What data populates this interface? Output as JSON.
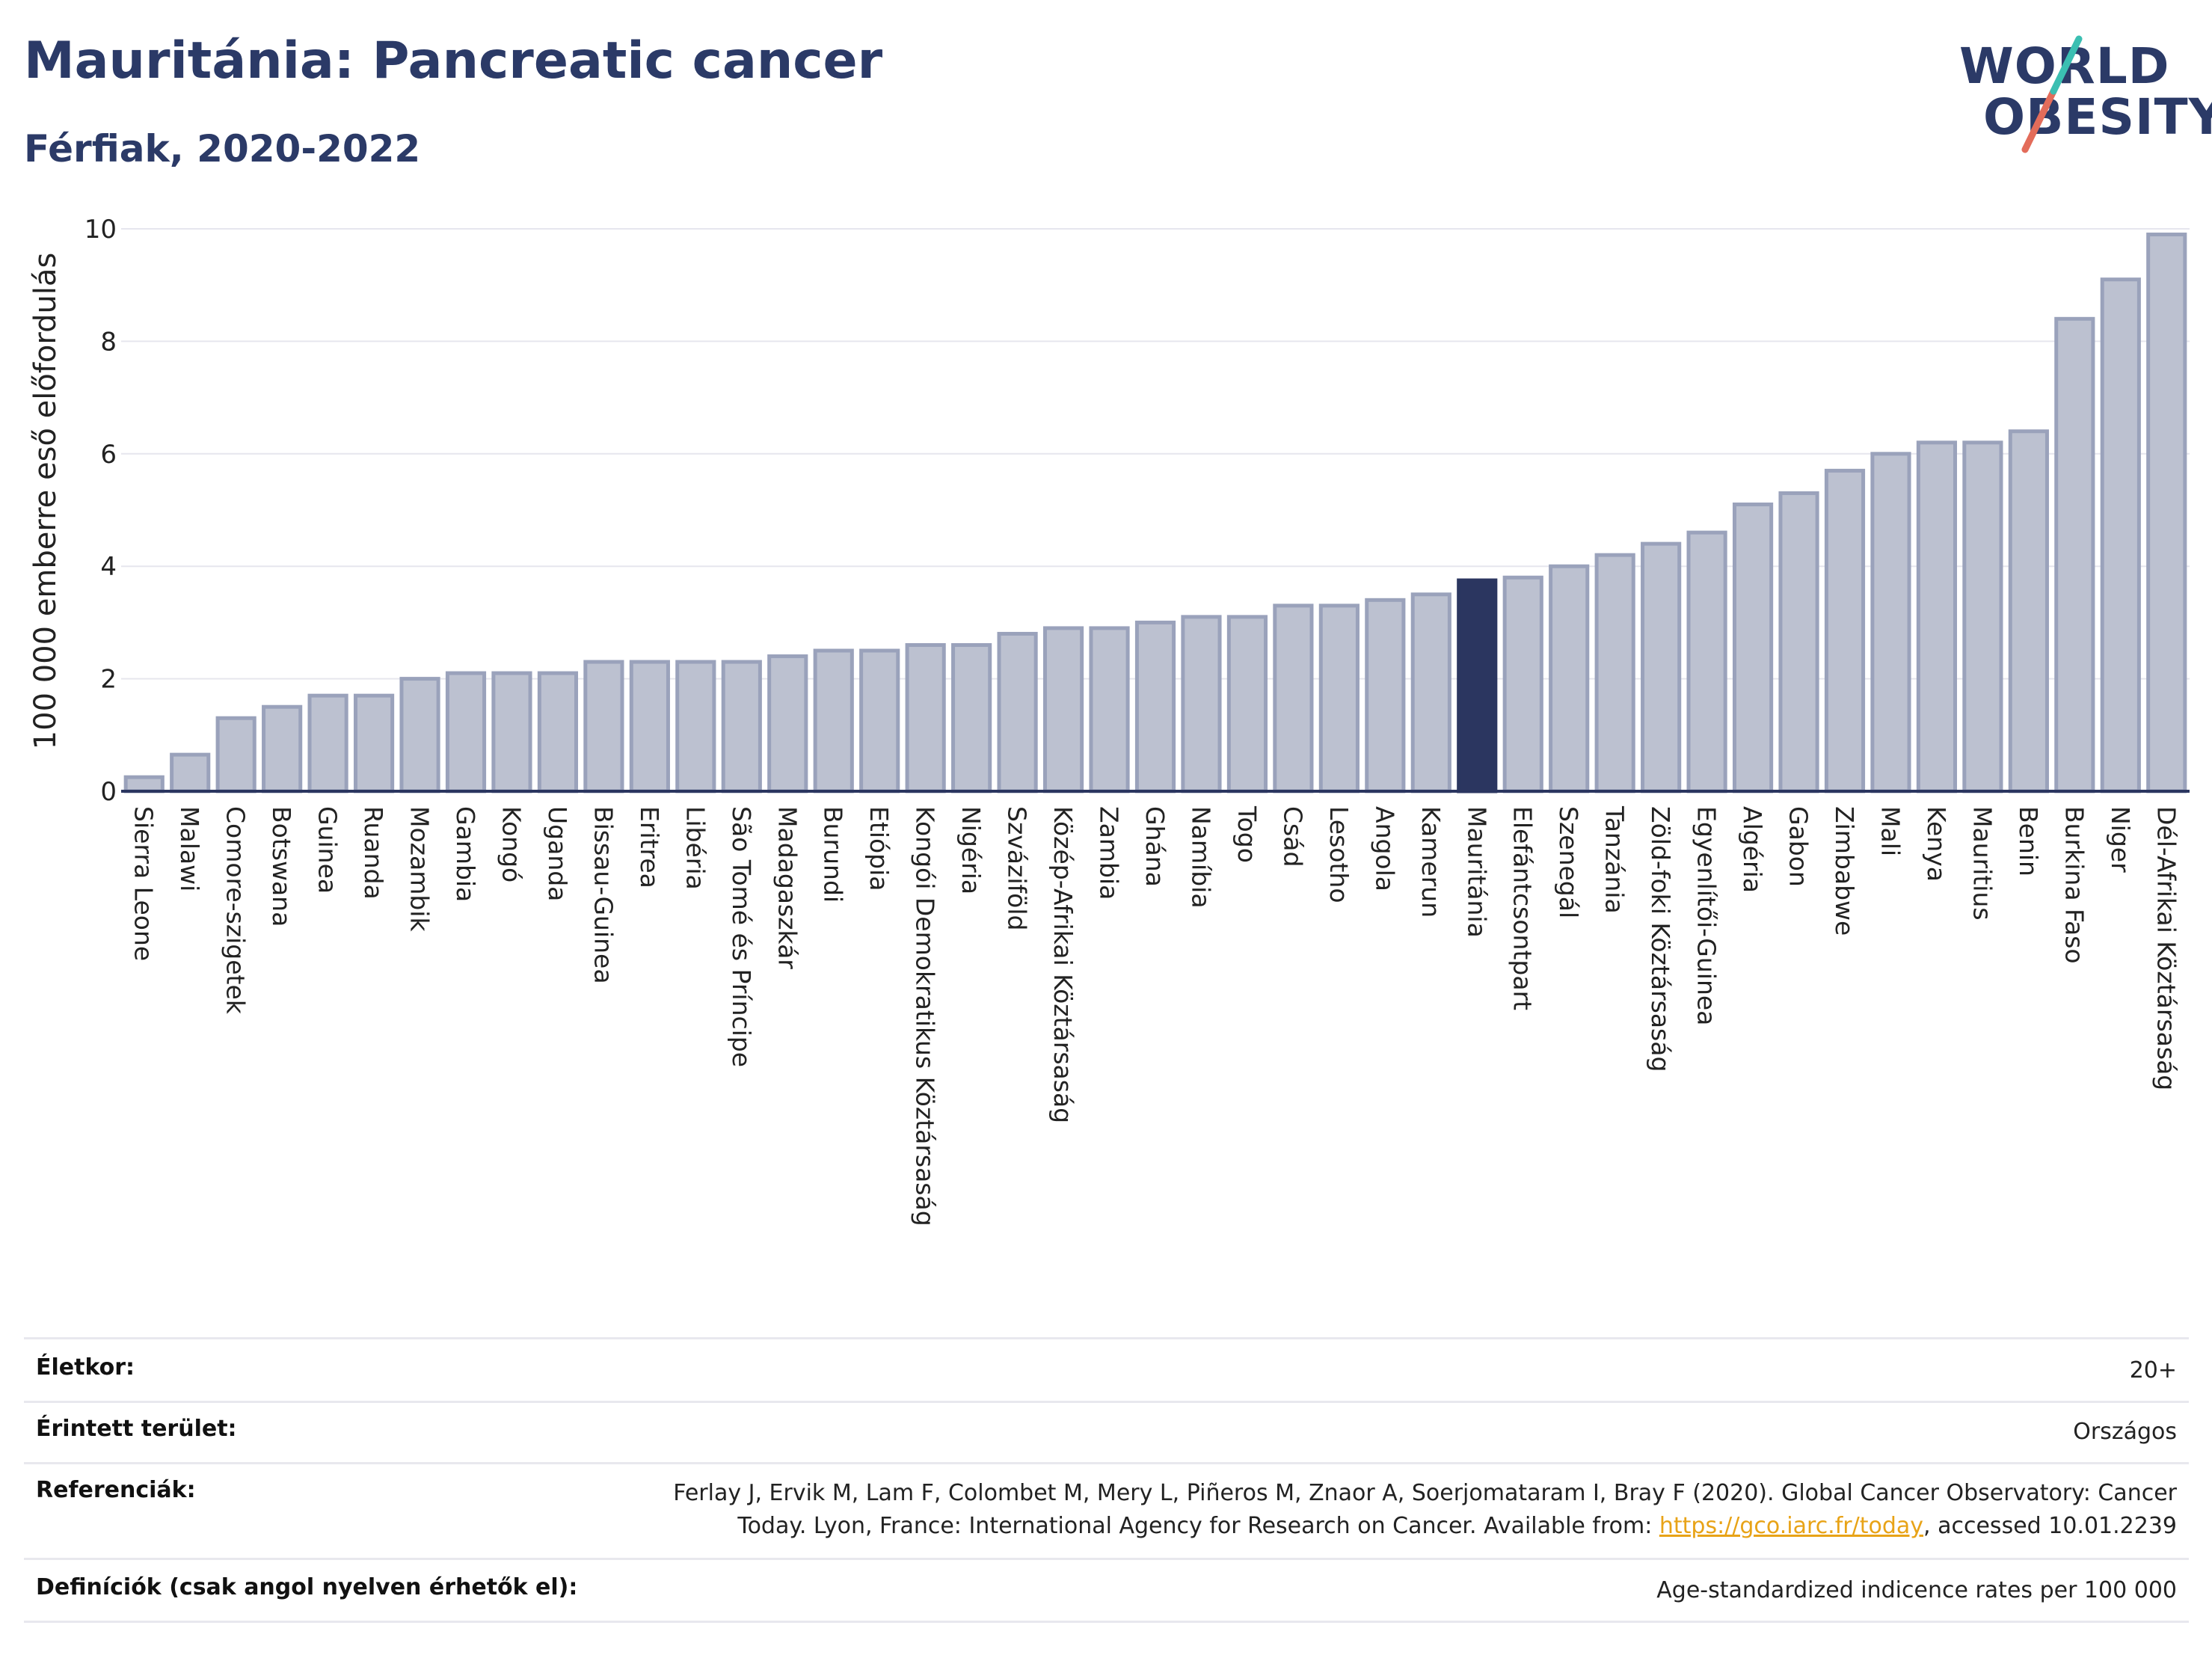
{
  "header": {
    "title": "Mauritánia: Pancreatic cancer",
    "subtitle": "Férfiak, 2020-2022"
  },
  "logo": {
    "line1": "WORLD",
    "line2": "OBESITY"
  },
  "colors": {
    "bar": "#bcc1d0",
    "bar_border": "#9aa2bb",
    "highlight": "#2b3660",
    "title": "#2b3a67"
  },
  "chart_data": {
    "type": "bar",
    "ylabel": "100 000 emberre eső előfordulás",
    "ylim": [
      0,
      10
    ],
    "yticks": [
      0,
      2,
      4,
      6,
      8,
      10
    ],
    "grid": true,
    "highlight": "Mauritánia",
    "categories": [
      "Sierra Leone",
      "Malawi",
      "Comore-szigetek",
      "Botswana",
      "Guinea",
      "Ruanda",
      "Mozambik",
      "Gambia",
      "Kongó",
      "Uganda",
      "Bissau-Guinea",
      "Eritrea",
      "Libéria",
      "São Tomé és Príncipe",
      "Madagaszkár",
      "Burundi",
      "Etiópia",
      "Kongói Demokratikus Köztársaság",
      "Nigéria",
      "Szváziföld",
      "Közép-Afrikai Köztársaság",
      "Zambia",
      "Ghána",
      "Namíbia",
      "Togo",
      "Csád",
      "Lesotho",
      "Angola",
      "Kamerun",
      "Mauritánia",
      "Elefántcsontpart",
      "Szenegál",
      "Tanzánia",
      "Zöld-foki Köztársaság",
      "Egyenlítői-Guinea",
      "Algéria",
      "Gabon",
      "Zimbabwe",
      "Mali",
      "Kenya",
      "Mauritius",
      "Benin",
      "Burkina Faso",
      "Niger",
      "Dél-Afrikai Köztársaság"
    ],
    "values": [
      0.25,
      0.65,
      1.3,
      1.5,
      1.7,
      1.7,
      2.0,
      2.1,
      2.1,
      2.1,
      2.3,
      2.3,
      2.3,
      2.3,
      2.4,
      2.5,
      2.5,
      2.6,
      2.6,
      2.8,
      2.9,
      2.9,
      3.0,
      3.1,
      3.1,
      3.3,
      3.3,
      3.4,
      3.5,
      3.75,
      3.8,
      4.0,
      4.2,
      4.4,
      4.6,
      5.1,
      5.3,
      5.7,
      6.0,
      6.2,
      6.2,
      6.4,
      8.4,
      9.1,
      9.9
    ]
  },
  "info": {
    "age_label": "Életkor:",
    "age_value": "20+",
    "area_label": "Érintett terület:",
    "area_value": "Országos",
    "ref_label": "Referenciák:",
    "ref_line1": "Ferlay J, Ervik M, Lam F, Colombet M, Mery L, Piñeros M, Znaor A, Soerjomataram I, Bray F (2020). Global Cancer Observatory: Cancer",
    "ref_line2_pre": "Today. Lyon, France: International Agency for Research on Cancer. Available from: ",
    "ref_link": "https://gco.iarc.fr/today",
    "ref_line2_post": ", accessed 10.01.2239",
    "def_label": "Definíciók (csak angol nyelven érhetők el):",
    "def_value": "Age-standardized indicence rates per 100 000"
  }
}
